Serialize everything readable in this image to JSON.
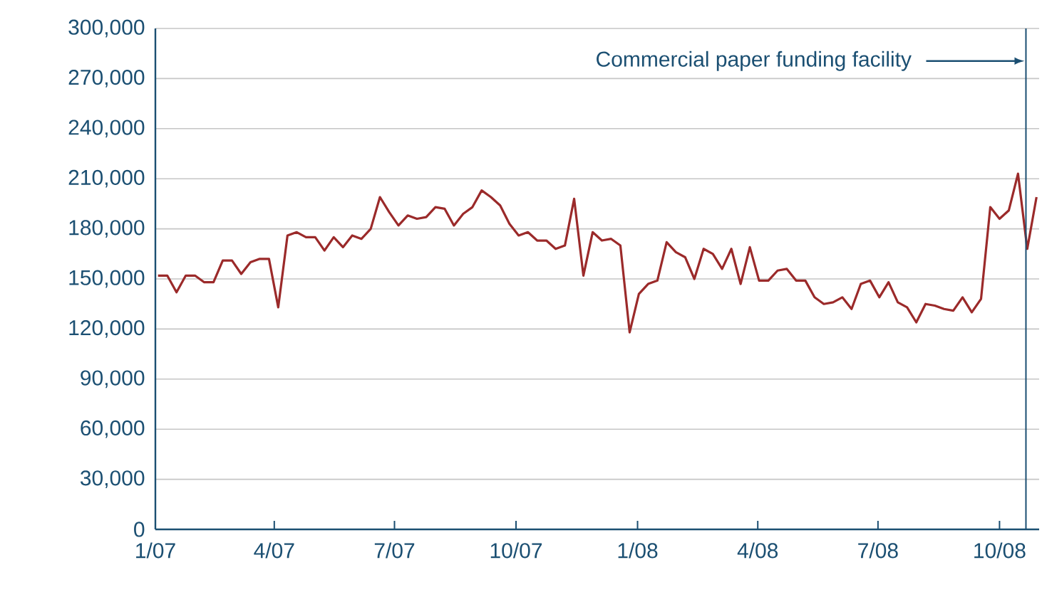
{
  "chart_data": {
    "type": "line",
    "x": [
      "2007-01-03",
      "2007-01-10",
      "2007-01-17",
      "2007-01-24",
      "2007-01-31",
      "2007-02-07",
      "2007-02-14",
      "2007-02-21",
      "2007-02-28",
      "2007-03-07",
      "2007-03-14",
      "2007-03-21",
      "2007-03-28",
      "2007-04-04",
      "2007-04-11",
      "2007-04-18",
      "2007-04-25",
      "2007-05-02",
      "2007-05-09",
      "2007-05-16",
      "2007-05-23",
      "2007-05-30",
      "2007-06-06",
      "2007-06-13",
      "2007-06-20",
      "2007-06-27",
      "2007-07-04",
      "2007-07-11",
      "2007-07-18",
      "2007-07-25",
      "2007-08-01",
      "2007-08-08",
      "2007-08-15",
      "2007-08-22",
      "2007-08-29",
      "2007-09-05",
      "2007-09-12",
      "2007-09-19",
      "2007-09-26",
      "2007-10-03",
      "2007-10-10",
      "2007-10-17",
      "2007-10-24",
      "2007-10-31",
      "2007-11-07",
      "2007-11-14",
      "2007-11-21",
      "2007-11-28",
      "2007-12-05",
      "2007-12-12",
      "2007-12-19",
      "2007-12-26",
      "2008-01-02",
      "2008-01-09",
      "2008-01-16",
      "2008-01-23",
      "2008-01-30",
      "2008-02-06",
      "2008-02-13",
      "2008-02-20",
      "2008-02-27",
      "2008-03-05",
      "2008-03-12",
      "2008-03-19",
      "2008-03-26",
      "2008-04-02",
      "2008-04-09",
      "2008-04-16",
      "2008-04-23",
      "2008-04-30",
      "2008-05-07",
      "2008-05-14",
      "2008-05-21",
      "2008-05-28",
      "2008-06-04",
      "2008-06-11",
      "2008-06-18",
      "2008-06-25",
      "2008-07-02",
      "2008-07-09",
      "2008-07-16",
      "2008-07-23",
      "2008-07-30",
      "2008-08-06",
      "2008-08-13",
      "2008-08-20",
      "2008-08-27",
      "2008-09-03",
      "2008-09-10",
      "2008-09-17",
      "2008-09-24",
      "2008-10-01",
      "2008-10-08",
      "2008-10-15",
      "2008-10-22",
      "2008-10-29"
    ],
    "series": [
      {
        "color": "#9b2a2a",
        "values": [
          152000,
          152000,
          142000,
          152000,
          152000,
          148000,
          148000,
          161000,
          161000,
          153000,
          160000,
          162000,
          162000,
          133000,
          176000,
          178000,
          175000,
          175000,
          167000,
          175000,
          169000,
          176000,
          174000,
          180000,
          199000,
          190000,
          182000,
          188000,
          186000,
          187000,
          193000,
          192000,
          182000,
          189000,
          193000,
          203000,
          199000,
          194000,
          183000,
          176000,
          178000,
          173000,
          173000,
          168000,
          170000,
          198000,
          152000,
          178000,
          173000,
          174000,
          170000,
          118000,
          141000,
          147000,
          149000,
          172000,
          166000,
          163000,
          150000,
          168000,
          165000,
          156000,
          168000,
          147000,
          169000,
          149000,
          149000,
          155000,
          156000,
          149000,
          149000,
          139000,
          135000,
          136000,
          139000,
          132000,
          147000,
          149000,
          139000,
          148000,
          136000,
          133000,
          124000,
          135000,
          134000,
          132000,
          131000,
          139000,
          130000,
          138000,
          193000,
          186000,
          191000,
          213000,
          168000,
          199000
        ]
      }
    ],
    "xlim": [
      "2007-01-01",
      "2008-10-31"
    ],
    "xticks": [
      {
        "value": "2007-01-01",
        "label": "1/07"
      },
      {
        "value": "2007-04-01",
        "label": "4/07"
      },
      {
        "value": "2007-07-01",
        "label": "7/07"
      },
      {
        "value": "2007-10-01",
        "label": "10/07"
      },
      {
        "value": "2008-01-01",
        "label": "1/08"
      },
      {
        "value": "2008-04-01",
        "label": "4/08"
      },
      {
        "value": "2008-07-01",
        "label": "7/08"
      },
      {
        "value": "2008-10-01",
        "label": "10/08"
      }
    ],
    "ylim": [
      0,
      300000
    ],
    "yticks": [
      {
        "value": 0,
        "label": "0"
      },
      {
        "value": 30000,
        "label": "30,000"
      },
      {
        "value": 60000,
        "label": "60,000"
      },
      {
        "value": 90000,
        "label": "90,000"
      },
      {
        "value": 120000,
        "label": "120,000"
      },
      {
        "value": 150000,
        "label": "150,000"
      },
      {
        "value": 180000,
        "label": "180,000"
      },
      {
        "value": 210000,
        "label": "210,000"
      },
      {
        "value": 240000,
        "label": "240,000"
      },
      {
        "value": 270000,
        "label": "270,000"
      },
      {
        "value": 300000,
        "label": "300,000"
      }
    ],
    "grid": "y",
    "ref_lines": [
      {
        "axis": "x",
        "value": "2008-10-21",
        "label": "Commercial paper funding facility",
        "color": "#1b4f72"
      }
    ]
  }
}
